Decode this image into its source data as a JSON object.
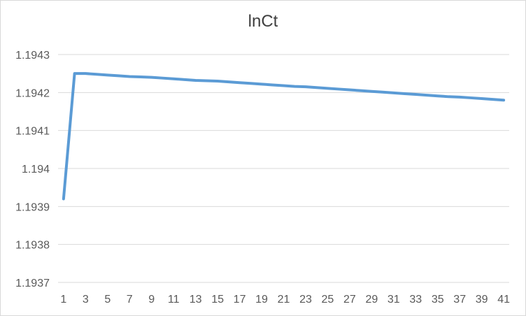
{
  "chart_data": {
    "type": "line",
    "title": "lnCt",
    "xlabel": "",
    "ylabel": "",
    "x": [
      1,
      2,
      3,
      4,
      5,
      6,
      7,
      8,
      9,
      10,
      11,
      12,
      13,
      14,
      15,
      16,
      17,
      18,
      19,
      20,
      21,
      22,
      23,
      24,
      25,
      26,
      27,
      28,
      29,
      30,
      31,
      32,
      33,
      34,
      35,
      36,
      37,
      38,
      39,
      40,
      41
    ],
    "x_tick_labels": [
      "1",
      "3",
      "5",
      "7",
      "9",
      "11",
      "13",
      "15",
      "17",
      "19",
      "21",
      "23",
      "25",
      "27",
      "29",
      "31",
      "33",
      "35",
      "37",
      "39",
      "41"
    ],
    "y_tick_labels": [
      "1.1943",
      "1.1942",
      "1.1941",
      "1.194",
      "1.1939",
      "1.1938",
      "1.1937"
    ],
    "ylim": [
      1.1937,
      1.1943
    ],
    "grid": "horizontal",
    "legend": "none",
    "series": [
      {
        "values": [
          1.19392,
          1.19425,
          1.19425,
          1.194248,
          1.194246,
          1.194244,
          1.194242,
          1.194241,
          1.19424,
          1.194238,
          1.194236,
          1.194234,
          1.194232,
          1.194231,
          1.19423,
          1.194228,
          1.194226,
          1.194224,
          1.194222,
          1.19422,
          1.194218,
          1.194216,
          1.194215,
          1.194213,
          1.194211,
          1.194209,
          1.194207,
          1.194205,
          1.194203,
          1.194201,
          1.194199,
          1.194197,
          1.194195,
          1.194193,
          1.194191,
          1.194189,
          1.194188,
          1.194186,
          1.194184,
          1.194182,
          1.19418
        ]
      }
    ],
    "colors": {
      "line": "#5b9bd5",
      "grid": "#d9d9d9",
      "text": "#595959"
    }
  }
}
